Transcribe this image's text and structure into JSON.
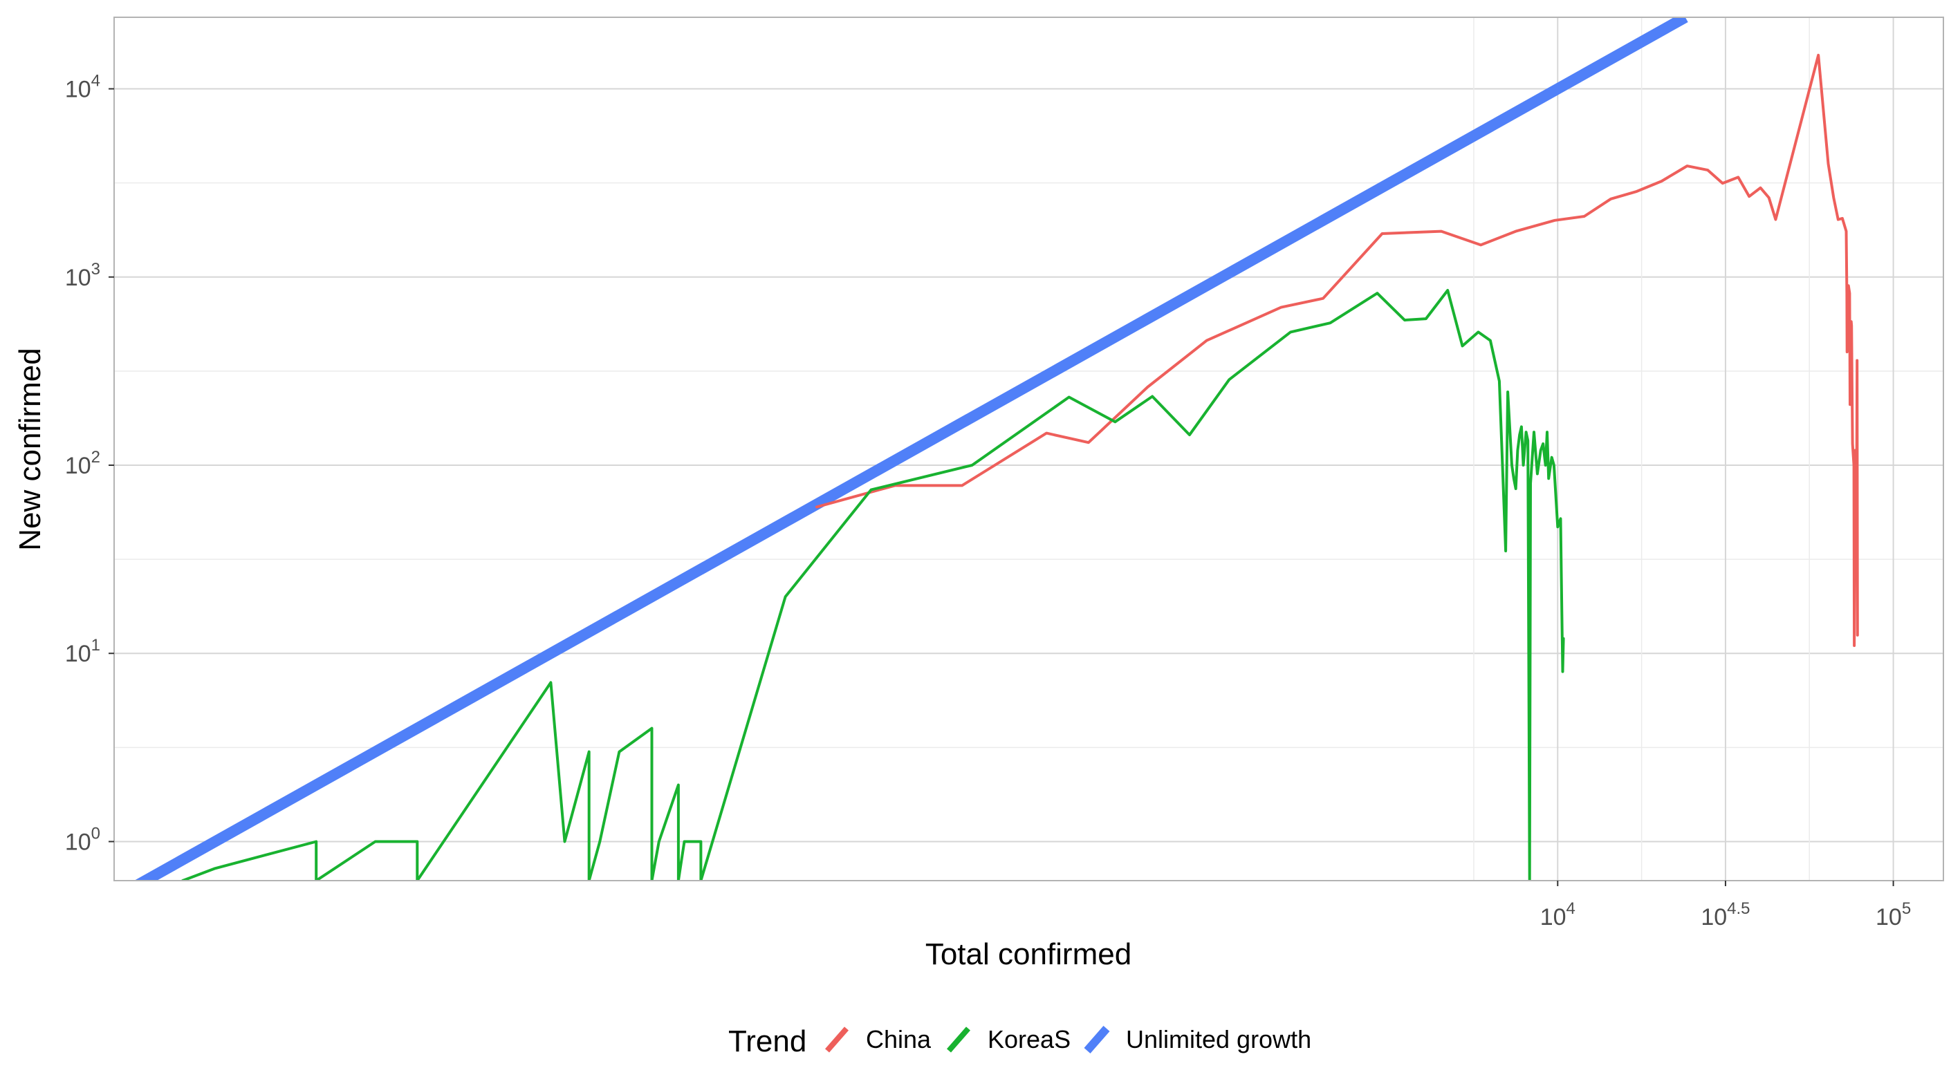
{
  "chart_data": {
    "type": "line",
    "xlabel": "Total confirmed",
    "ylabel": "New confirmed",
    "x_scale": "log10",
    "y_scale": "log10",
    "xlim": [
      0.5,
      141000
    ],
    "ylim": [
      0.62,
      24000
    ],
    "grid": true,
    "legend": {
      "title": "Trend",
      "position": "bottom",
      "entries": [
        "China",
        "KoreaS",
        "Unlimited growth"
      ]
    },
    "x_ticks": [
      {
        "value": 10000,
        "base": "10",
        "exp": "4"
      },
      {
        "value": 31623,
        "base": "10",
        "exp": "4.5"
      },
      {
        "value": 100000,
        "base": "10",
        "exp": "5"
      }
    ],
    "y_ticks": [
      {
        "value": 1,
        "base": "10",
        "exp": "0"
      },
      {
        "value": 10,
        "base": "10",
        "exp": "1"
      },
      {
        "value": 100,
        "base": "10",
        "exp": "2"
      },
      {
        "value": 1000,
        "base": "10",
        "exp": "3"
      },
      {
        "value": 10000,
        "base": "10",
        "exp": "4"
      }
    ],
    "series": [
      {
        "name": "Unlimited growth",
        "color": "#5080F8",
        "points": [
          [
            0.5,
            0.5
          ],
          [
            24000,
            24000
          ]
        ]
      },
      {
        "name": "China",
        "color": "#EE5F5B",
        "points": [
          [
            62,
            60
          ],
          [
            106,
            78
          ],
          [
            168,
            78
          ],
          [
            300,
            148
          ],
          [
            400,
            132
          ],
          [
            600,
            260
          ],
          [
            900,
            460
          ],
          [
            1500,
            690
          ],
          [
            2000,
            770
          ],
          [
            3000,
            1700
          ],
          [
            4500,
            1750
          ],
          [
            5900,
            1480
          ],
          [
            7500,
            1750
          ],
          [
            9800,
            2000
          ],
          [
            12000,
            2100
          ],
          [
            14400,
            2600
          ],
          [
            17200,
            2850
          ],
          [
            20400,
            3230
          ],
          [
            24300,
            3890
          ],
          [
            28000,
            3700
          ],
          [
            31000,
            3150
          ],
          [
            34500,
            3390
          ],
          [
            37200,
            2680
          ],
          [
            40200,
            2980
          ],
          [
            42600,
            2640
          ],
          [
            44600,
            2020
          ],
          [
            59800,
            15100
          ],
          [
            64000,
            4000
          ],
          [
            66400,
            2640
          ],
          [
            68500,
            2020
          ],
          [
            70500,
            2050
          ],
          [
            72400,
            1750
          ],
          [
            72700,
            820
          ],
          [
            72800,
            400
          ],
          [
            73500,
            900
          ],
          [
            74100,
            820
          ],
          [
            74300,
            210
          ],
          [
            74900,
            580
          ],
          [
            75100,
            550
          ],
          [
            75600,
            130
          ],
          [
            76300,
            100
          ],
          [
            76500,
            11
          ],
          [
            77100,
            120
          ],
          [
            77600,
            31
          ],
          [
            78000,
            360
          ],
          [
            78200,
            12.5
          ]
        ]
      },
      {
        "name": "KoreaS",
        "color": "#18B230",
        "points": [
          [
            0.8,
            0.62
          ],
          [
            1.0,
            0.72
          ],
          [
            2.0,
            1
          ],
          [
            2.0,
            0.62
          ],
          [
            3.0,
            1
          ],
          [
            4.0,
            1
          ],
          [
            4.0,
            0.62
          ],
          [
            10.0,
            7
          ],
          [
            11.0,
            1
          ],
          [
            13.0,
            3
          ],
          [
            13.0,
            0.62
          ],
          [
            14.0,
            1
          ],
          [
            16.0,
            3
          ],
          [
            20.0,
            4
          ],
          [
            20.0,
            0.62
          ],
          [
            21.0,
            1
          ],
          [
            24.0,
            2
          ],
          [
            24.0,
            0.62
          ],
          [
            25.0,
            1
          ],
          [
            28.0,
            1
          ],
          [
            28.0,
            0.62
          ],
          [
            50.0,
            20
          ],
          [
            90.0,
            74
          ],
          [
            180.0,
            100
          ],
          [
            350.0,
            230
          ],
          [
            480.0,
            170
          ],
          [
            620.0,
            232
          ],
          [
            800.0,
            145
          ],
          [
            1050.0,
            285
          ],
          [
            1600.0,
            510
          ],
          [
            2100.0,
            570
          ],
          [
            2900.0,
            820
          ],
          [
            3500.0,
            590
          ],
          [
            4050.0,
            600
          ],
          [
            4700.0,
            850
          ],
          [
            5200.0,
            430
          ],
          [
            5800.0,
            510
          ],
          [
            6300.0,
            460
          ],
          [
            6700.0,
            280
          ],
          [
            7000.0,
            35
          ],
          [
            7100.0,
            245
          ],
          [
            7300.0,
            100
          ],
          [
            7400.0,
            85
          ],
          [
            7500.0,
            75
          ],
          [
            7600.0,
            120
          ],
          [
            7700.0,
            145
          ],
          [
            7800.0,
            160
          ],
          [
            7900.0,
            100
          ],
          [
            8050.0,
            150
          ],
          [
            8150.0,
            135
          ],
          [
            8250.0,
            0.62
          ],
          [
            8300.0,
            80
          ],
          [
            8500.0,
            150
          ],
          [
            8700.0,
            90
          ],
          [
            8900.0,
            120
          ],
          [
            9050.0,
            130
          ],
          [
            9200.0,
            100
          ],
          [
            9300.0,
            150
          ],
          [
            9400.0,
            85
          ],
          [
            9600.0,
            110
          ],
          [
            9750.0,
            100
          ],
          [
            10000.0,
            47
          ],
          [
            10200.0,
            52
          ],
          [
            10250.0,
            27
          ],
          [
            10350.0,
            8
          ],
          [
            10400.0,
            12
          ]
        ]
      }
    ]
  }
}
